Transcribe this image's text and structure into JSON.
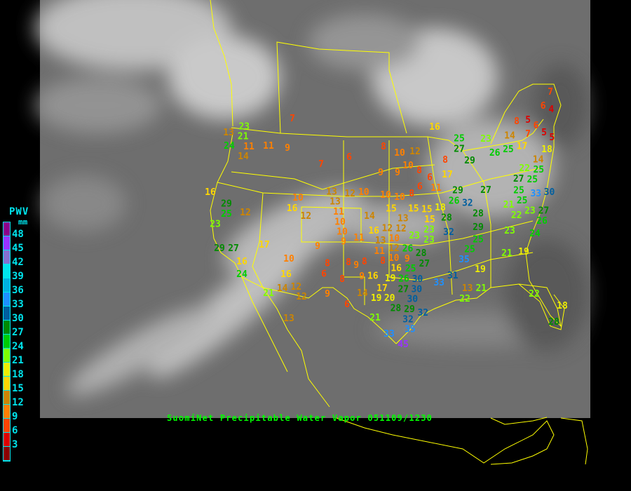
{
  "caption": "SuomiNet Precipitable Water Vapor 051109/1230",
  "legend": {
    "title": "PWV",
    "unit": "mm",
    "labels": [
      "48",
      "45",
      "42",
      "39",
      "36",
      "33",
      "30",
      "27",
      "24",
      "21",
      "18",
      "15",
      "12",
      "9",
      "6",
      "3"
    ],
    "colors": [
      "#8b008b",
      "#9933ff",
      "#8470d0",
      "#00e5ee",
      "#00b0e0",
      "#1e90ff",
      "#005f9f",
      "#008b00",
      "#00cd00",
      "#7fff00",
      "#eeee00",
      "#ffd700",
      "#cd8500",
      "#ff8000",
      "#ff4500",
      "#dd0000",
      "#8b0000"
    ]
  },
  "map_colors": {
    "borders": "#ffff00",
    "background": "#6e6e6e"
  },
  "stations": [
    7,
    23,
    13,
    21,
    24,
    11,
    11,
    9,
    14,
    6,
    7,
    8,
    10,
    12,
    10,
    8,
    9,
    9,
    6,
    6,
    16,
    10,
    12,
    10,
    10,
    10,
    8,
    29,
    25,
    12,
    16,
    13,
    13,
    12,
    11,
    10,
    14,
    15,
    15,
    15,
    23,
    10,
    9,
    11,
    23,
    16,
    12,
    13,
    12,
    23,
    13,
    10,
    12,
    17,
    9,
    29,
    27,
    11,
    10,
    8,
    26,
    28,
    16,
    10,
    8,
    6,
    8,
    9,
    8,
    16,
    9,
    25,
    27,
    19,
    24,
    16,
    8,
    9,
    16,
    17,
    26,
    30,
    30,
    14,
    12,
    21,
    12,
    9,
    14,
    20,
    19,
    27,
    30,
    6,
    28,
    29,
    32,
    13,
    21,
    32,
    7,
    6,
    4,
    8,
    5,
    6,
    16,
    7,
    5,
    5,
    23,
    14,
    17,
    25,
    27,
    8,
    26,
    25,
    14,
    18,
    29,
    17,
    22,
    25,
    27,
    25,
    11,
    29,
    27,
    25,
    25,
    33,
    30,
    26,
    32,
    21,
    18,
    22,
    23,
    27,
    28,
    28,
    15,
    26,
    23,
    32,
    29,
    23,
    24,
    25,
    25,
    35,
    21,
    19,
    19,
    31,
    33,
    21,
    13,
    22,
    22,
    18,
    28,
    35,
    33,
    45
  ]
}
